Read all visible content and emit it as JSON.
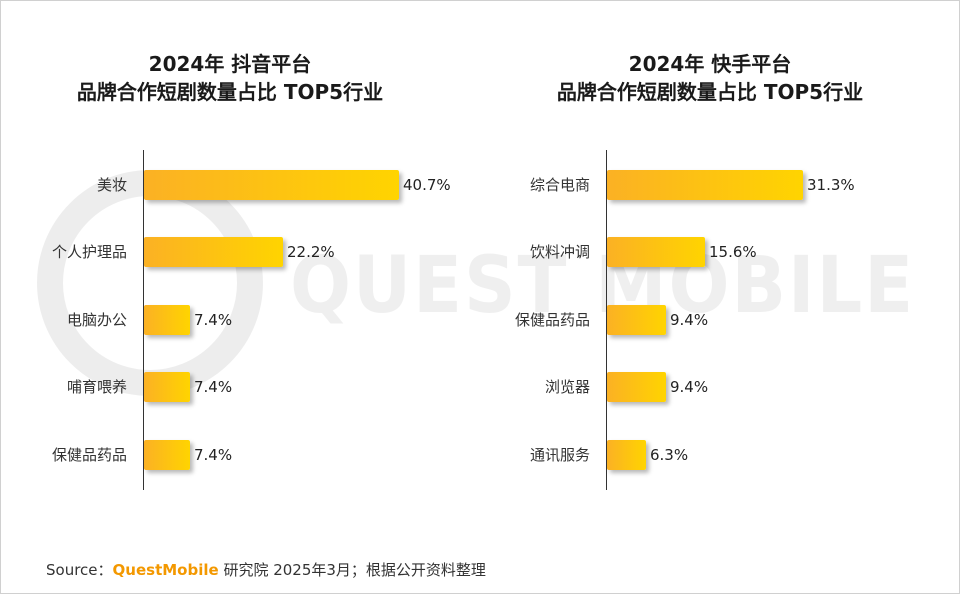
{
  "chart_data": [
    {
      "type": "bar",
      "orientation": "horizontal",
      "title_line1": "2024年 抖音平台",
      "title_line2": "品牌合作短剧数量占比 TOP5行业",
      "categories": [
        "美妆",
        "个人护理品",
        "电脑办公",
        "哺育喂养",
        "保健品药品"
      ],
      "values": [
        40.7,
        22.2,
        7.4,
        7.4,
        7.4
      ],
      "value_labels": [
        "40.7%",
        "22.2%",
        "7.4%",
        "7.4%",
        "7.4%"
      ],
      "unit": "%",
      "xlim": [
        0,
        40.7
      ],
      "bar_color_start": "#fbb124",
      "bar_color_end": "#ffd400"
    },
    {
      "type": "bar",
      "orientation": "horizontal",
      "title_line1": "2024年 快手平台",
      "title_line2": "品牌合作短剧数量占比 TOP5行业",
      "categories": [
        "综合电商",
        "饮料冲调",
        "保健品药品",
        "浏览器",
        "通讯服务"
      ],
      "values": [
        31.3,
        15.6,
        9.4,
        9.4,
        6.3
      ],
      "value_labels": [
        "31.3%",
        "15.6%",
        "9.4%",
        "9.4%",
        "6.3%"
      ],
      "unit": "%",
      "xlim": [
        0,
        31.3
      ],
      "bar_color_start": "#fbb124",
      "bar_color_end": "#ffd400"
    }
  ],
  "watermark": "QUEST MOBILE",
  "source": {
    "prefix": "Source：",
    "brand": "QuestMobile",
    "rest": " 研究院 2025年3月；根据公开资料整理"
  },
  "colors": {
    "brand": "#f39800",
    "axis": "#333333"
  }
}
